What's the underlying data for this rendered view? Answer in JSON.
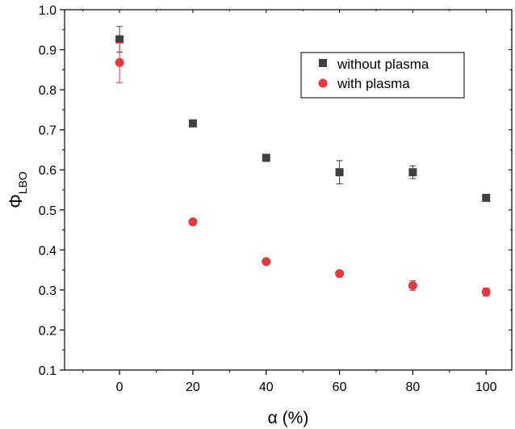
{
  "chart_data": {
    "type": "scatter",
    "title": "",
    "xlabel": "α (%)",
    "ylabel_main": "Φ",
    "ylabel_sub": "LBO",
    "xlim": [
      -15,
      107
    ],
    "ylim": [
      0.1,
      1.0
    ],
    "x_ticks": [
      0,
      20,
      40,
      60,
      80,
      100
    ],
    "x_tick_labels": [
      "0",
      "20",
      "40",
      "60",
      "80",
      "100"
    ],
    "y_ticks": [
      0.1,
      0.2,
      0.3,
      0.4,
      0.5,
      0.6,
      0.7,
      0.8,
      0.9,
      1.0
    ],
    "y_tick_labels": [
      "0.1",
      "0.2",
      "0.3",
      "0.4",
      "0.5",
      "0.6",
      "0.7",
      "0.8",
      "0.9",
      "1.0"
    ],
    "grid": false,
    "legend_position": "top-right",
    "series": [
      {
        "name": "without plasma",
        "marker": "square",
        "color": "#404040",
        "x": [
          0,
          20,
          40,
          60,
          80,
          100
        ],
        "y": [
          0.926,
          0.716,
          0.63,
          0.594,
          0.594,
          0.53
        ],
        "yerr": [
          0.032,
          0.0,
          0.0,
          0.029,
          0.016,
          0.0
        ]
      },
      {
        "name": "with plasma",
        "marker": "circle",
        "color": "#e8383d",
        "x": [
          0,
          20,
          40,
          60,
          80,
          100
        ],
        "y": [
          0.868,
          0.47,
          0.371,
          0.341,
          0.311,
          0.295
        ],
        "yerr": [
          0.05,
          0.0,
          0.0,
          0.0,
          0.012,
          0.01
        ]
      }
    ]
  }
}
